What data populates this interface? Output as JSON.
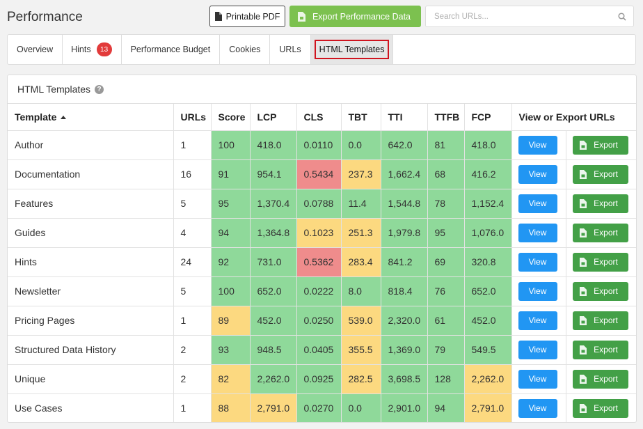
{
  "page": {
    "title": "Performance"
  },
  "toolbar": {
    "pdf_label": "Printable PDF",
    "export_label": "Export Performance Data",
    "search_placeholder": "Search URLs..."
  },
  "tabs": [
    {
      "label": "Overview"
    },
    {
      "label": "Hints",
      "badge": "13"
    },
    {
      "label": "Performance Budget"
    },
    {
      "label": "Cookies"
    },
    {
      "label": "URLs"
    },
    {
      "label": "HTML Templates",
      "active": true
    }
  ],
  "panel": {
    "title": "HTML Templates"
  },
  "colors": {
    "good": "#8fd99a",
    "warn": "#fcd980",
    "bad": "#ef8c8c",
    "view": "#2196f3",
    "export": "#43a047"
  },
  "table": {
    "columns": [
      "Template",
      "URLs",
      "Score",
      "LCP",
      "CLS",
      "TBT",
      "TTI",
      "TTFB",
      "FCP",
      "View or Export URLs"
    ],
    "view_label": "View",
    "export_label": "Export",
    "rows": [
      {
        "template": "Author",
        "urls": "1",
        "cells": [
          [
            "100",
            "good"
          ],
          [
            "418.0",
            "good"
          ],
          [
            "0.0110",
            "good"
          ],
          [
            "0.0",
            "good"
          ],
          [
            "642.0",
            "good"
          ],
          [
            "81",
            "good"
          ],
          [
            "418.0",
            "good"
          ]
        ]
      },
      {
        "template": "Documentation",
        "urls": "16",
        "cells": [
          [
            "91",
            "good"
          ],
          [
            "954.1",
            "good"
          ],
          [
            "0.5434",
            "bad"
          ],
          [
            "237.3",
            "warn"
          ],
          [
            "1,662.4",
            "good"
          ],
          [
            "68",
            "good"
          ],
          [
            "416.2",
            "good"
          ]
        ]
      },
      {
        "template": "Features",
        "urls": "5",
        "cells": [
          [
            "95",
            "good"
          ],
          [
            "1,370.4",
            "good"
          ],
          [
            "0.0788",
            "good"
          ],
          [
            "11.4",
            "good"
          ],
          [
            "1,544.8",
            "good"
          ],
          [
            "78",
            "good"
          ],
          [
            "1,152.4",
            "good"
          ]
        ]
      },
      {
        "template": "Guides",
        "urls": "4",
        "cells": [
          [
            "94",
            "good"
          ],
          [
            "1,364.8",
            "good"
          ],
          [
            "0.1023",
            "warn"
          ],
          [
            "251.3",
            "warn"
          ],
          [
            "1,979.8",
            "good"
          ],
          [
            "95",
            "good"
          ],
          [
            "1,076.0",
            "good"
          ]
        ]
      },
      {
        "template": "Hints",
        "urls": "24",
        "cells": [
          [
            "92",
            "good"
          ],
          [
            "731.0",
            "good"
          ],
          [
            "0.5362",
            "bad"
          ],
          [
            "283.4",
            "warn"
          ],
          [
            "841.2",
            "good"
          ],
          [
            "69",
            "good"
          ],
          [
            "320.8",
            "good"
          ]
        ]
      },
      {
        "template": "Newsletter",
        "urls": "5",
        "cells": [
          [
            "100",
            "good"
          ],
          [
            "652.0",
            "good"
          ],
          [
            "0.0222",
            "good"
          ],
          [
            "8.0",
            "good"
          ],
          [
            "818.4",
            "good"
          ],
          [
            "76",
            "good"
          ],
          [
            "652.0",
            "good"
          ]
        ]
      },
      {
        "template": "Pricing Pages",
        "urls": "1",
        "cells": [
          [
            "89",
            "warn"
          ],
          [
            "452.0",
            "good"
          ],
          [
            "0.0250",
            "good"
          ],
          [
            "539.0",
            "warn"
          ],
          [
            "2,320.0",
            "good"
          ],
          [
            "61",
            "good"
          ],
          [
            "452.0",
            "good"
          ]
        ]
      },
      {
        "template": "Structured Data History",
        "urls": "2",
        "cells": [
          [
            "93",
            "good"
          ],
          [
            "948.5",
            "good"
          ],
          [
            "0.0405",
            "good"
          ],
          [
            "355.5",
            "warn"
          ],
          [
            "1,369.0",
            "good"
          ],
          [
            "79",
            "good"
          ],
          [
            "549.5",
            "good"
          ]
        ]
      },
      {
        "template": "Unique",
        "urls": "2",
        "cells": [
          [
            "82",
            "warn"
          ],
          [
            "2,262.0",
            "good"
          ],
          [
            "0.0925",
            "good"
          ],
          [
            "282.5",
            "warn"
          ],
          [
            "3,698.5",
            "good"
          ],
          [
            "128",
            "good"
          ],
          [
            "2,262.0",
            "warn"
          ]
        ]
      },
      {
        "template": "Use Cases",
        "urls": "1",
        "cells": [
          [
            "88",
            "warn"
          ],
          [
            "2,791.0",
            "warn"
          ],
          [
            "0.0270",
            "good"
          ],
          [
            "0.0",
            "good"
          ],
          [
            "2,901.0",
            "good"
          ],
          [
            "94",
            "good"
          ],
          [
            "2,791.0",
            "warn"
          ]
        ]
      }
    ]
  }
}
